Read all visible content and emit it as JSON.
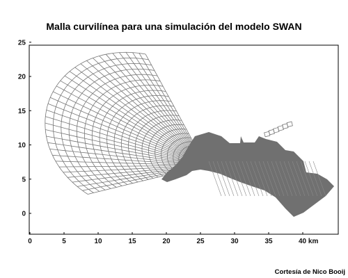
{
  "title": "Malla curvilínea para una simulación del modelo SWAN",
  "credit": "Cortesía de Nico Booij",
  "colors": {
    "mesh": "#767676",
    "fill": "#707070",
    "frame": "#000000"
  },
  "chart_data": {
    "type": "other",
    "description_type": "curvilinear grid",
    "x_ticks": [
      "0",
      "5",
      "10",
      "15",
      "20",
      "25",
      "30",
      "35",
      "40 km"
    ],
    "y_ticks": [
      "0",
      "5",
      "10",
      "15",
      "20",
      "25"
    ],
    "xlim": [
      0,
      45
    ],
    "ylim": [
      -3,
      30
    ]
  }
}
